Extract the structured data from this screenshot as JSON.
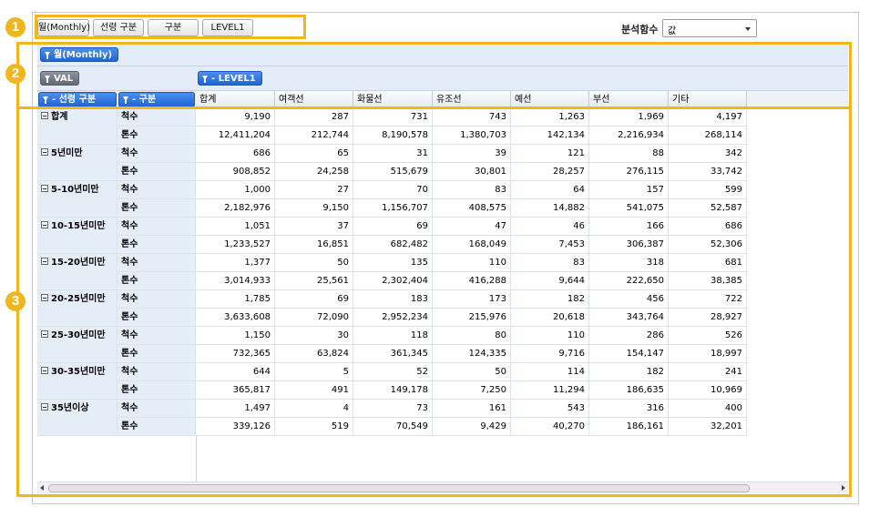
{
  "toolbar": {
    "buttons": [
      "월(Monthly)",
      "선령 구분",
      "구분",
      "LEVEL1"
    ],
    "function_label": "분석함수",
    "function_value": "값"
  },
  "pivot": {
    "filter_field": "월(Monthly)",
    "data_field": "VAL",
    "row_fields": [
      "- 선령 구분",
      "- 구분"
    ],
    "column_field": "- LEVEL1",
    "columns": [
      "합계",
      "여객선",
      "화물선",
      "유조선",
      "예선",
      "부선",
      "기타"
    ],
    "groups": [
      {
        "name": "합계",
        "rows": [
          {
            "label": "척수",
            "values": [
              "9,190",
              "287",
              "731",
              "743",
              "1,263",
              "1,969",
              "4,197"
            ]
          },
          {
            "label": "톤수",
            "values": [
              "12,411,204",
              "212,744",
              "8,190,578",
              "1,380,703",
              "142,134",
              "2,216,934",
              "268,114"
            ]
          }
        ]
      },
      {
        "name": "5년미만",
        "rows": [
          {
            "label": "척수",
            "values": [
              "686",
              "65",
              "31",
              "39",
              "121",
              "88",
              "342"
            ]
          },
          {
            "label": "톤수",
            "values": [
              "908,852",
              "24,258",
              "515,679",
              "30,801",
              "28,257",
              "276,115",
              "33,742"
            ]
          }
        ]
      },
      {
        "name": "5-10년미만",
        "rows": [
          {
            "label": "척수",
            "values": [
              "1,000",
              "27",
              "70",
              "83",
              "64",
              "157",
              "599"
            ]
          },
          {
            "label": "톤수",
            "values": [
              "2,182,976",
              "9,150",
              "1,156,707",
              "408,575",
              "14,882",
              "541,075",
              "52,587"
            ]
          }
        ]
      },
      {
        "name": "10-15년미만",
        "rows": [
          {
            "label": "척수",
            "values": [
              "1,051",
              "37",
              "69",
              "47",
              "46",
              "166",
              "686"
            ]
          },
          {
            "label": "톤수",
            "values": [
              "1,233,527",
              "16,851",
              "682,482",
              "168,049",
              "7,453",
              "306,387",
              "52,306"
            ]
          }
        ]
      },
      {
        "name": "15-20년미만",
        "rows": [
          {
            "label": "척수",
            "values": [
              "1,377",
              "50",
              "135",
              "110",
              "83",
              "318",
              "681"
            ]
          },
          {
            "label": "톤수",
            "values": [
              "3,014,933",
              "25,561",
              "2,302,404",
              "416,288",
              "9,644",
              "222,650",
              "38,385"
            ]
          }
        ]
      },
      {
        "name": "20-25년미만",
        "rows": [
          {
            "label": "척수",
            "values": [
              "1,785",
              "69",
              "183",
              "173",
              "182",
              "456",
              "722"
            ]
          },
          {
            "label": "톤수",
            "values": [
              "3,633,608",
              "72,090",
              "2,952,234",
              "215,976",
              "20,618",
              "343,764",
              "28,927"
            ]
          }
        ]
      },
      {
        "name": "25-30년미만",
        "rows": [
          {
            "label": "척수",
            "values": [
              "1,150",
              "30",
              "118",
              "80",
              "110",
              "286",
              "526"
            ]
          },
          {
            "label": "톤수",
            "values": [
              "732,365",
              "63,824",
              "361,345",
              "124,335",
              "9,716",
              "154,147",
              "18,997"
            ]
          }
        ]
      },
      {
        "name": "30-35년미만",
        "rows": [
          {
            "label": "척수",
            "values": [
              "644",
              "5",
              "52",
              "50",
              "114",
              "182",
              "241"
            ]
          },
          {
            "label": "톤수",
            "values": [
              "365,817",
              "491",
              "149,178",
              "7,250",
              "11,294",
              "186,635",
              "10,969"
            ]
          }
        ]
      },
      {
        "name": "35년이상",
        "rows": [
          {
            "label": "척수",
            "values": [
              "1,497",
              "4",
              "73",
              "161",
              "543",
              "316",
              "400"
            ]
          },
          {
            "label": "톤수",
            "values": [
              "339,126",
              "519",
              "70,549",
              "9,429",
              "40,270",
              "186,161",
              "32,201"
            ]
          }
        ]
      }
    ]
  },
  "annotations": [
    "1",
    "2",
    "3"
  ],
  "colors": {
    "accent": "#f1b51d",
    "field_pill": "#2a6fe0",
    "data_pill": "#707980",
    "row_header_bg": "#e5edf7"
  }
}
